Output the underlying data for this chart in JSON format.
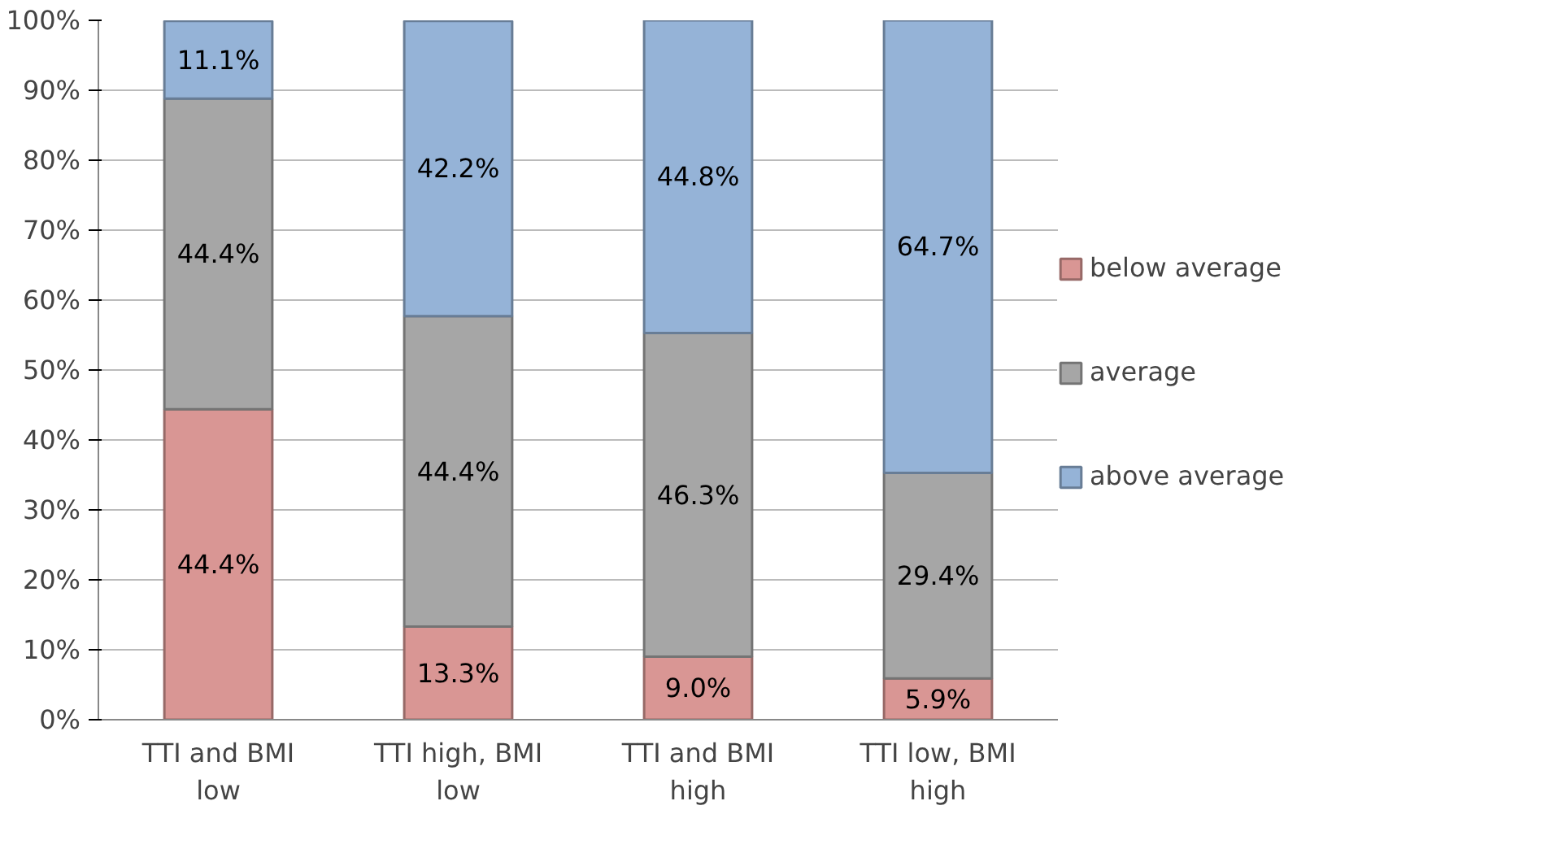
{
  "chart_data": {
    "type": "bar",
    "stacked": true,
    "categories": [
      "TTI and BMI low",
      "TTI high, BMI low",
      "TTI and BMI high",
      "TTI low, BMI high"
    ],
    "series": [
      {
        "name": "below average",
        "color": "#d99694",
        "values": [
          44.4,
          13.3,
          9.0,
          5.9
        ],
        "value_labels": [
          "44.4%",
          "13.3%",
          "9.0%",
          "5.9%"
        ]
      },
      {
        "name": "average",
        "color": "#a6a6a6",
        "values": [
          44.4,
          44.4,
          46.3,
          29.4
        ],
        "value_labels": [
          "44.4%",
          "44.4%",
          "46.3%",
          "29.4%"
        ]
      },
      {
        "name": "above average",
        "color": "#95b3d7",
        "values": [
          11.1,
          42.2,
          44.8,
          64.7
        ],
        "value_labels": [
          "11.1%",
          "42.2%",
          "44.8%",
          "64.7%"
        ]
      }
    ],
    "ylim": [
      0,
      100
    ],
    "yticks": [
      {
        "value": 0,
        "label": "0%"
      },
      {
        "value": 10,
        "label": "10%"
      },
      {
        "value": 20,
        "label": "20%"
      },
      {
        "value": 30,
        "label": "30%"
      },
      {
        "value": 40,
        "label": "40%"
      },
      {
        "value": 50,
        "label": "50%"
      },
      {
        "value": 60,
        "label": "60%"
      },
      {
        "value": 70,
        "label": "70%"
      },
      {
        "value": 80,
        "label": "80%"
      },
      {
        "value": 90,
        "label": "90%"
      },
      {
        "value": 100,
        "label": "100%"
      }
    ],
    "grid": "y",
    "legend": "right"
  }
}
